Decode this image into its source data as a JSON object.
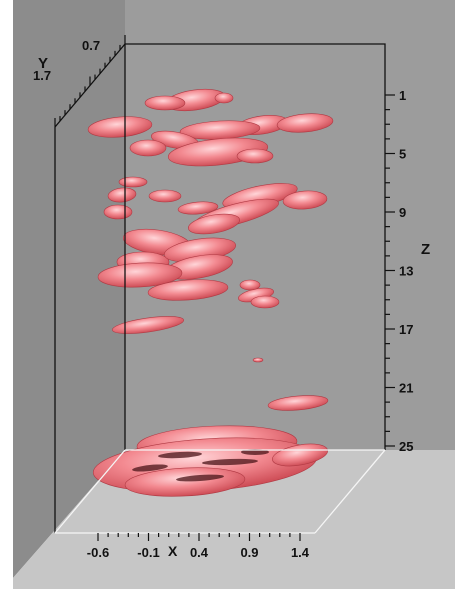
{
  "chart_data": {
    "type": "3d-isosurface",
    "title": "",
    "axes": {
      "x": {
        "label": "X",
        "ticks": [
          "-0.6",
          "-0.1",
          "0.4",
          "0.9",
          "1.4"
        ],
        "range": [
          -0.6,
          1.4
        ]
      },
      "y": {
        "label": "Y",
        "ticks": [
          "0.7",
          "1.7"
        ],
        "range": [
          0.7,
          1.7
        ]
      },
      "z": {
        "label": "Z",
        "ticks": [
          "1",
          "5",
          "9",
          "13",
          "17",
          "21",
          "25"
        ],
        "range": [
          1,
          25
        ],
        "reversed": true
      }
    },
    "surface_color": "#f07a82",
    "grid": false
  },
  "colors": {
    "back_wall": "#9c9c9c",
    "side_wall": "#8c8c8c",
    "floor": "#c6c6c6",
    "background": "#ffffff"
  }
}
